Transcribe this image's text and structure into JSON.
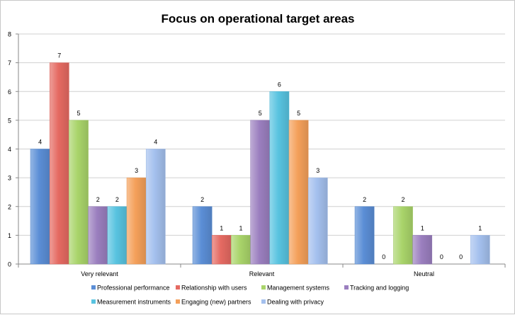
{
  "chart_data": {
    "type": "bar",
    "title": "Focus on operational target areas",
    "xlabel": "",
    "ylabel": "",
    "ylim": [
      0,
      8
    ],
    "yticks": [
      "0",
      "1",
      "2",
      "3",
      "4",
      "5",
      "6",
      "7",
      "8"
    ],
    "categories": [
      "Very relevant",
      "Relevant",
      "Neutral"
    ],
    "grid": true,
    "legend_position": "bottom",
    "series": [
      {
        "name": "Professional performance",
        "values": [
          4,
          2,
          2
        ],
        "color": "#5b8ed6"
      },
      {
        "name": "Relationship with users",
        "values": [
          7,
          1,
          0
        ],
        "color": "#e56a62"
      },
      {
        "name": "Management systems",
        "values": [
          5,
          1,
          2
        ],
        "color": "#a9d46a"
      },
      {
        "name": "Tracking and logging",
        "values": [
          2,
          5,
          1
        ],
        "color": "#9b7fbf"
      },
      {
        "name": "Measurement instruments",
        "values": [
          2,
          6,
          0
        ],
        "color": "#58c3e0"
      },
      {
        "name": "Engaging (new) partners",
        "values": [
          3,
          5,
          0
        ],
        "color": "#f4a05a"
      },
      {
        "name": "Dealing with privacy",
        "values": [
          4,
          3,
          1
        ],
        "color": "#a4c0ee"
      }
    ]
  }
}
